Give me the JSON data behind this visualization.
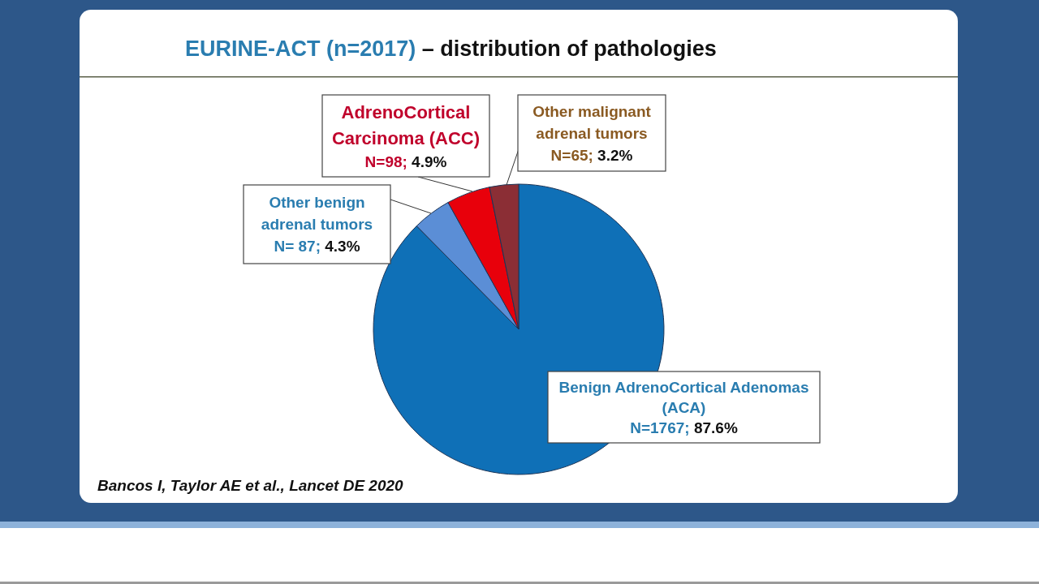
{
  "chart_data": {
    "type": "pie",
    "title": "EURINE-ACT (n=2017) – distribution of pathologies",
    "categories": [
      "Benign AdrenoCortical Adenomas (ACA)",
      "Other benign adrenal tumors",
      "AdrenoCortical Carcinoma (ACC)",
      "Other malignant adrenal tumors"
    ],
    "values": [
      1767,
      87,
      98,
      65
    ],
    "colors": [
      "#0f70b7",
      "#5b8ed6",
      "#e8000b",
      "#8b2e35"
    ],
    "value_labels": [
      "N=1767; 87.6%",
      "N= 87; 4.3%",
      "N=98; 4.9%",
      "N=65; 3.2%"
    ],
    "annotations": [
      "Bancos I, Taylor AE et al., Lancet DE 2020"
    ]
  }
}
